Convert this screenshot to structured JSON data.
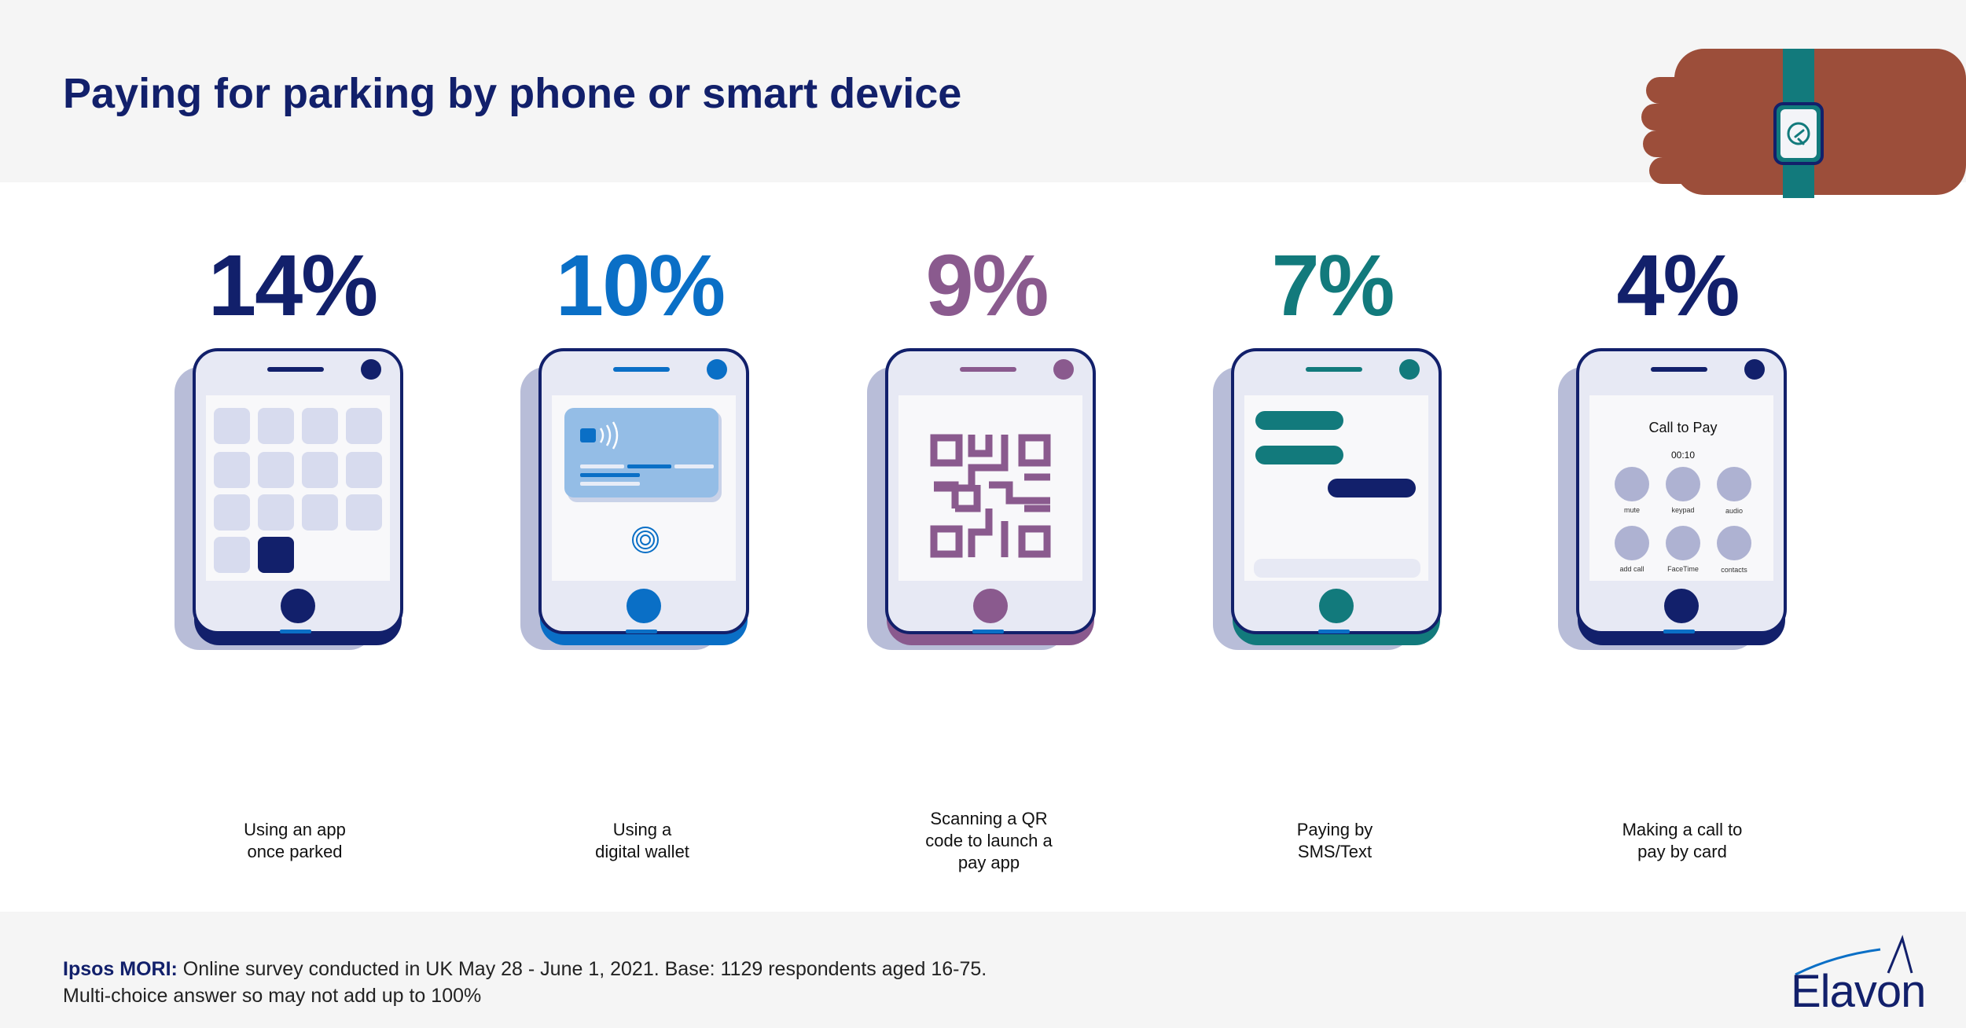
{
  "header": {
    "title": "Paying for parking by phone or smart device"
  },
  "chart_data": {
    "type": "bar",
    "title": "Paying for parking by phone or smart device",
    "unit": "%",
    "categories": [
      "Using an app once parked",
      "Using a digital wallet",
      "Scanning a QR code to launch a pay app",
      "Paying by SMS/Text",
      "Making a call to pay by card"
    ],
    "values": [
      14,
      10,
      9,
      7,
      4
    ],
    "colors": [
      "#12206b",
      "#0a6fc6",
      "#8a5a8e",
      "#127a7c",
      "#12206b"
    ]
  },
  "items": [
    {
      "percent": "14%",
      "label_lines": [
        "Using an app",
        "once parked"
      ]
    },
    {
      "percent": "10%",
      "label_lines": [
        "Using a",
        "digital wallet"
      ]
    },
    {
      "percent": "9%",
      "label_lines": [
        "Scanning a QR",
        "code to launch a",
        "pay app"
      ]
    },
    {
      "percent": "7%",
      "label_lines": [
        "Paying by",
        "SMS/Text"
      ]
    },
    {
      "percent": "4%",
      "label_lines": [
        "Making a call to",
        "pay by card"
      ]
    }
  ],
  "call_screen": {
    "title": "Call to Pay",
    "timer": "00:10",
    "buttons": [
      "mute",
      "keypad",
      "audio",
      "add call",
      "FaceTime",
      "contacts"
    ]
  },
  "footer": {
    "source_bold": "Ipsos MORI:",
    "source_line1": " Online survey conducted in UK May 28 - June 1, 2021. Base: 1129 respondents aged 16-75.",
    "source_line2": "Multi-choice answer so may not add up to 100%"
  },
  "brand": {
    "name": "Elavon"
  }
}
